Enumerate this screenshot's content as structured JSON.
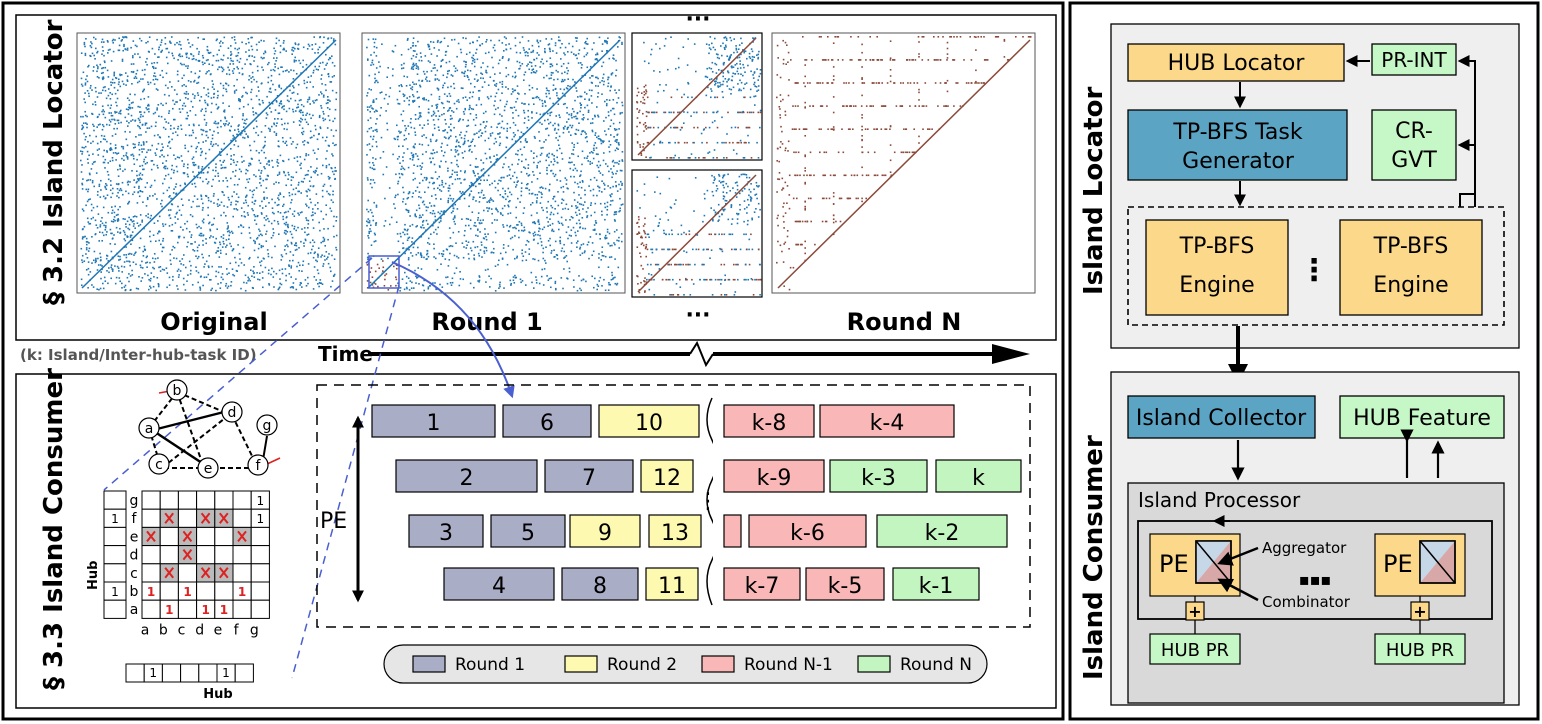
{
  "colors": {
    "round1": "#a9adc5",
    "round2": "#fdf9b1",
    "roundN1": "#f9b7b7",
    "roundN": "#c3f5c0",
    "blue_box": "#5ba4c4",
    "yellow_box": "#fbd88a",
    "green_box": "#c6f7c6",
    "gray_panel": "#efefef",
    "gray_panel2": "#d9d9d9",
    "dot_blue": "#1f77b4",
    "dot_brown": "#8c4a3a"
  },
  "left": {
    "locator_side_label": "§ 3.2  Island Locator",
    "consumer_side_label": "§ 3.3  Island Consumer",
    "plot_labels": [
      "Original",
      "Round 1",
      "Round N"
    ],
    "ellipsis_top": "···",
    "ellipsis_bottom": "···",
    "caption_k": "(k: Island/Inter-hub-task ID)",
    "time_label": "Time",
    "pe_label": "PE",
    "graph_nodes": [
      "a",
      "b",
      "c",
      "d",
      "e",
      "f",
      "g"
    ],
    "matrix_row_labels": [
      "g",
      "f",
      "e",
      "d",
      "c",
      "b",
      "a"
    ],
    "matrix_col_labels": [
      "a",
      "b",
      "c",
      "d",
      "e",
      "f",
      "g"
    ],
    "hub_label_left": "Hub",
    "hub_label_bottom": "Hub",
    "hub_values_left": [
      "",
      "1",
      "",
      "",
      "",
      "1",
      ""
    ],
    "hub_values_bottom": [
      "",
      "1",
      "",
      "",
      "",
      "1",
      ""
    ],
    "matrix_ones": [
      {
        "r": 0,
        "c": 6,
        "t": "1"
      },
      {
        "r": 1,
        "c": 6,
        "t": "1"
      },
      {
        "r": 5,
        "c": 0,
        "t": "1"
      },
      {
        "r": 5,
        "c": 2,
        "t": "1"
      },
      {
        "r": 5,
        "c": 5,
        "t": "1"
      },
      {
        "r": 6,
        "c": 1,
        "t": "1"
      },
      {
        "r": 6,
        "c": 3,
        "t": "1"
      },
      {
        "r": 6,
        "c": 4,
        "t": "1"
      }
    ],
    "schedule_rows": [
      [
        {
          "t": "1",
          "k": "round1"
        },
        {
          "t": "6",
          "k": "round1"
        },
        {
          "t": "10",
          "k": "round2"
        },
        {
          "t": "k-8",
          "k": "roundN1"
        },
        {
          "t": "k-4",
          "k": "roundN1"
        }
      ],
      [
        {
          "t": "2",
          "k": "round1"
        },
        {
          "t": "7",
          "k": "round1"
        },
        {
          "t": "12",
          "k": "round2"
        },
        {
          "t": "k-9",
          "k": "roundN1"
        },
        {
          "t": "k-3",
          "k": "roundN"
        },
        {
          "t": "k",
          "k": "roundN"
        }
      ],
      [
        {
          "t": "3",
          "k": "round1"
        },
        {
          "t": "5",
          "k": "round1"
        },
        {
          "t": "9",
          "k": "round2"
        },
        {
          "t": "13",
          "k": "round2"
        },
        {
          "t": "",
          "k": "roundN1"
        },
        {
          "t": "k-6",
          "k": "roundN1"
        },
        {
          "t": "k-2",
          "k": "roundN"
        }
      ],
      [
        {
          "t": "4",
          "k": "round1"
        },
        {
          "t": "8",
          "k": "round1"
        },
        {
          "t": "11",
          "k": "round2"
        },
        {
          "t": "k-7",
          "k": "roundN1"
        },
        {
          "t": "k-5",
          "k": "roundN1"
        },
        {
          "t": "k-1",
          "k": "roundN"
        }
      ]
    ],
    "legend": [
      {
        "label": "Round 1",
        "k": "round1"
      },
      {
        "label": "Round 2",
        "k": "round2"
      },
      {
        "label": "Round N-1",
        "k": "roundN1"
      },
      {
        "label": "Round N",
        "k": "roundN"
      }
    ]
  },
  "right": {
    "locator_side_label": "Island Locator",
    "consumer_side_label": "Island Consumer",
    "hub_locator": "HUB Locator",
    "pr_int": "PR-INT",
    "tpbfs_task_gen": [
      "TP-BFS Task",
      "Generator"
    ],
    "cr_gvt": [
      "CR-",
      "GVT"
    ],
    "tpbfs_engine": [
      "TP-BFS",
      "Engine"
    ],
    "engine_dots": "⋮",
    "island_collector": "Island Collector",
    "hub_feature": "HUB Feature",
    "island_processor": "Island Processor",
    "pe": "PE",
    "aggregator": "Aggregator",
    "combinator": "Combinator",
    "pe_dots": "▪▪▪",
    "hub_pr": "HUB PR",
    "plus": "+"
  }
}
